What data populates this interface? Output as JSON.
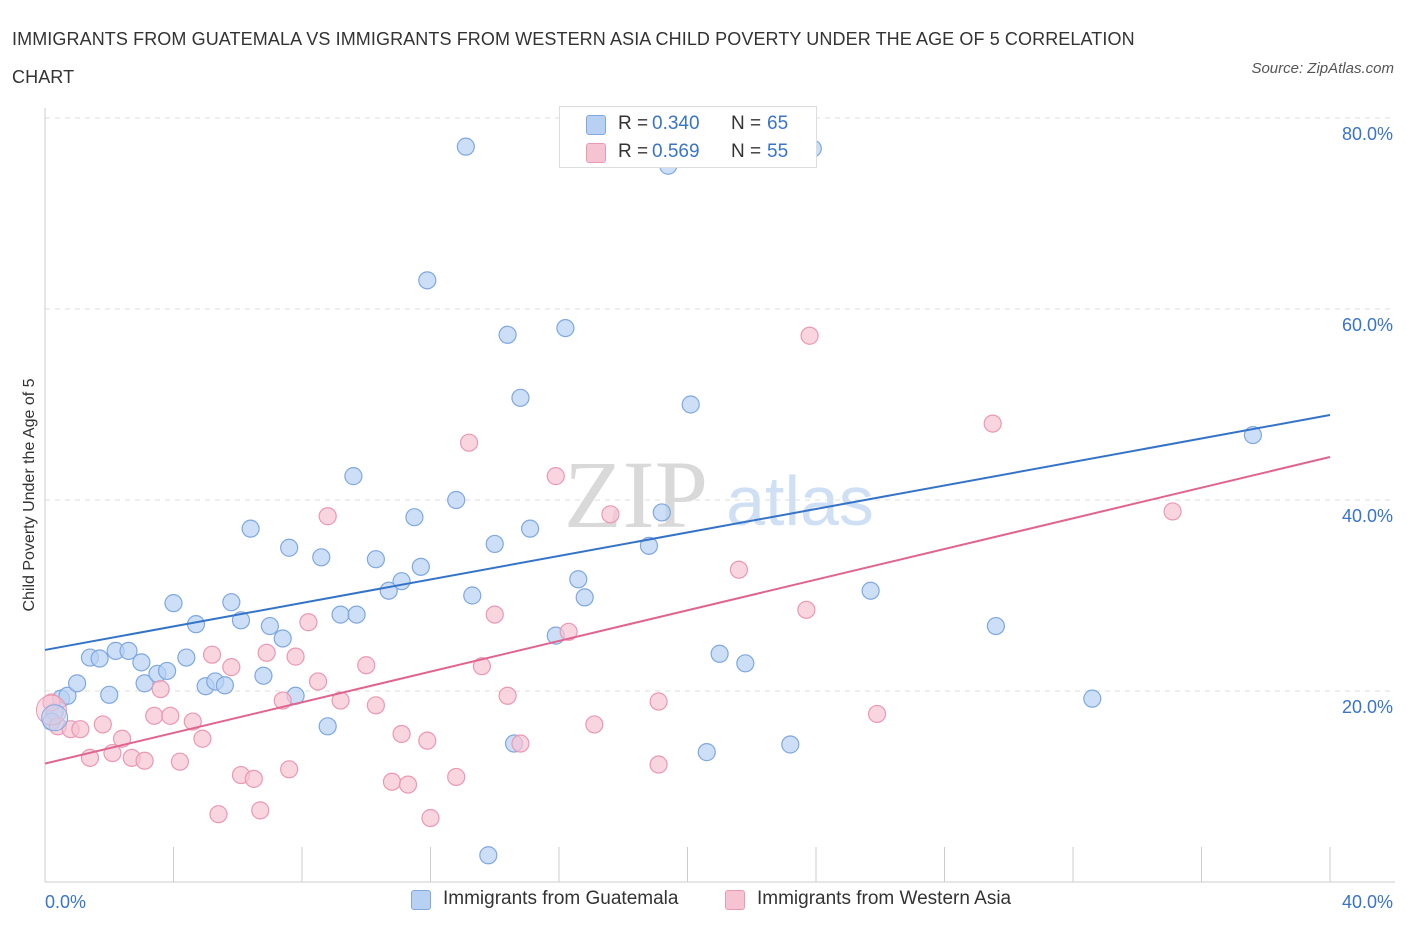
{
  "header": {
    "title": "IMMIGRANTS FROM GUATEMALA VS IMMIGRANTS FROM WESTERN ASIA CHILD POVERTY UNDER THE AGE OF 5 CORRELATION CHART",
    "source": "Source: ZipAtlas.com"
  },
  "colors": {
    "blue_fill": "#b8d1f3",
    "blue_stroke": "#7fa8e0",
    "blue_line": "#3473c8",
    "pink_fill": "#f6c3d3",
    "pink_stroke": "#eb98b3",
    "pink_line": "#e0648f",
    "tick_label": "#3a74c8",
    "grid": "#dddddd"
  },
  "legend": {
    "entries": [
      {
        "r_label": "R =",
        "r_value": "0.340",
        "n_label": "N =",
        "n_value": "65"
      },
      {
        "r_label": "R =",
        "r_value": "0.569",
        "n_label": "N =",
        "n_value": "55"
      }
    ]
  },
  "watermark": {
    "zip": "ZIP",
    "atlas": "atlas"
  },
  "chart_data": {
    "type": "scatter",
    "title": "IMMIGRANTS FROM GUATEMALA VS IMMIGRANTS FROM WESTERN ASIA CHILD POVERTY UNDER THE AGE OF 5 CORRELATION CHART",
    "xlabel": "",
    "ylabel": "Child Poverty Under the Age of 5",
    "xlim": [
      0,
      40
    ],
    "ylim": [
      0,
      80
    ],
    "x_tick_labels": [
      "0.0%",
      "40.0%"
    ],
    "y_tick_labels": [
      "20.0%",
      "40.0%",
      "60.0%",
      "80.0%"
    ],
    "y_ticks": [
      20,
      40,
      60,
      80
    ],
    "x_ticks": [
      0,
      4,
      8,
      12,
      16,
      20,
      24,
      28,
      32,
      36,
      40
    ],
    "grid": true,
    "legend_position": "top-center",
    "series": [
      {
        "name": "Immigrants from Guatemala",
        "color": "#7fa8e0",
        "r": 0.34,
        "n": 65,
        "trend": {
          "x": [
            0,
            40
          ],
          "y": [
            24.3,
            48.9
          ]
        },
        "points": [
          [
            0.3,
            17.8
          ],
          [
            0.5,
            19.2
          ],
          [
            0.7,
            19.5
          ],
          [
            1.0,
            20.8
          ],
          [
            1.4,
            23.5
          ],
          [
            1.7,
            23.4
          ],
          [
            2.0,
            19.6
          ],
          [
            2.2,
            24.2
          ],
          [
            2.6,
            24.2
          ],
          [
            3.0,
            23.0
          ],
          [
            3.1,
            20.8
          ],
          [
            3.5,
            21.8
          ],
          [
            3.8,
            22.1
          ],
          [
            4.0,
            29.2
          ],
          [
            4.4,
            23.5
          ],
          [
            4.7,
            27.0
          ],
          [
            5.0,
            20.5
          ],
          [
            5.3,
            21.0
          ],
          [
            5.6,
            20.6
          ],
          [
            5.8,
            29.3
          ],
          [
            6.1,
            27.4
          ],
          [
            6.4,
            37.0
          ],
          [
            6.8,
            21.6
          ],
          [
            7.0,
            26.8
          ],
          [
            7.4,
            25.5
          ],
          [
            7.6,
            35.0
          ],
          [
            7.8,
            19.5
          ],
          [
            8.6,
            34.0
          ],
          [
            8.8,
            16.3
          ],
          [
            9.2,
            28.0
          ],
          [
            9.6,
            42.5
          ],
          [
            9.7,
            28.0
          ],
          [
            10.3,
            33.8
          ],
          [
            10.7,
            30.5
          ],
          [
            11.1,
            31.5
          ],
          [
            11.5,
            38.2
          ],
          [
            11.7,
            33.0
          ],
          [
            11.9,
            63.0
          ],
          [
            12.8,
            40.0
          ],
          [
            13.1,
            77.0
          ],
          [
            13.3,
            30.0
          ],
          [
            13.8,
            2.8
          ],
          [
            14.0,
            35.4
          ],
          [
            14.4,
            57.3
          ],
          [
            14.6,
            14.5
          ],
          [
            14.8,
            50.7
          ],
          [
            15.1,
            37.0
          ],
          [
            15.9,
            25.8
          ],
          [
            16.2,
            58.0
          ],
          [
            16.6,
            31.7
          ],
          [
            16.8,
            29.8
          ],
          [
            18.8,
            35.2
          ],
          [
            19.2,
            38.7
          ],
          [
            19.4,
            75.0
          ],
          [
            20.1,
            50.0
          ],
          [
            20.6,
            13.6
          ],
          [
            21.0,
            23.9
          ],
          [
            21.8,
            22.9
          ],
          [
            23.2,
            14.4
          ],
          [
            23.9,
            76.8
          ],
          [
            25.7,
            30.5
          ],
          [
            29.6,
            26.8
          ],
          [
            32.6,
            19.2
          ],
          [
            37.6,
            46.8
          ],
          [
            0.2,
            16.8
          ]
        ]
      },
      {
        "name": "Immigrants from Western Asia",
        "color": "#eb98b3",
        "r": 0.569,
        "n": 55,
        "trend": {
          "x": [
            0,
            40
          ],
          "y": [
            12.4,
            44.5
          ]
        },
        "points": [
          [
            0.2,
            18.8
          ],
          [
            0.4,
            16.3
          ],
          [
            0.8,
            16.0
          ],
          [
            1.1,
            16.0
          ],
          [
            1.4,
            13.0
          ],
          [
            1.8,
            16.5
          ],
          [
            2.1,
            13.5
          ],
          [
            2.4,
            15.0
          ],
          [
            2.7,
            13.0
          ],
          [
            3.1,
            12.7
          ],
          [
            3.4,
            17.4
          ],
          [
            3.6,
            20.2
          ],
          [
            3.9,
            17.4
          ],
          [
            4.2,
            12.6
          ],
          [
            4.6,
            16.8
          ],
          [
            4.9,
            15.0
          ],
          [
            5.2,
            23.8
          ],
          [
            5.4,
            7.1
          ],
          [
            5.8,
            22.5
          ],
          [
            6.1,
            11.2
          ],
          [
            6.5,
            10.8
          ],
          [
            6.7,
            7.5
          ],
          [
            6.9,
            24.0
          ],
          [
            7.4,
            19.0
          ],
          [
            7.6,
            11.8
          ],
          [
            7.8,
            23.6
          ],
          [
            8.2,
            27.2
          ],
          [
            8.5,
            21.0
          ],
          [
            8.8,
            38.3
          ],
          [
            9.2,
            19.0
          ],
          [
            10.0,
            22.7
          ],
          [
            10.3,
            18.5
          ],
          [
            10.8,
            10.5
          ],
          [
            11.1,
            15.5
          ],
          [
            11.3,
            10.2
          ],
          [
            11.9,
            14.8
          ],
          [
            12.0,
            6.7
          ],
          [
            12.8,
            11.0
          ],
          [
            13.2,
            46.0
          ],
          [
            13.6,
            22.6
          ],
          [
            14.0,
            28.0
          ],
          [
            14.4,
            19.5
          ],
          [
            14.8,
            14.5
          ],
          [
            15.9,
            42.5
          ],
          [
            16.3,
            26.2
          ],
          [
            17.1,
            16.5
          ],
          [
            17.6,
            38.5
          ],
          [
            19.1,
            12.3
          ],
          [
            19.1,
            18.9
          ],
          [
            21.6,
            32.7
          ],
          [
            23.7,
            28.5
          ],
          [
            23.8,
            57.2
          ],
          [
            25.9,
            17.6
          ],
          [
            29.5,
            48.0
          ],
          [
            35.1,
            38.8
          ]
        ]
      }
    ]
  },
  "bottom_legend": {
    "items": [
      {
        "label": "Immigrants from Guatemala"
      },
      {
        "label": "Immigrants from Western Asia"
      }
    ]
  }
}
